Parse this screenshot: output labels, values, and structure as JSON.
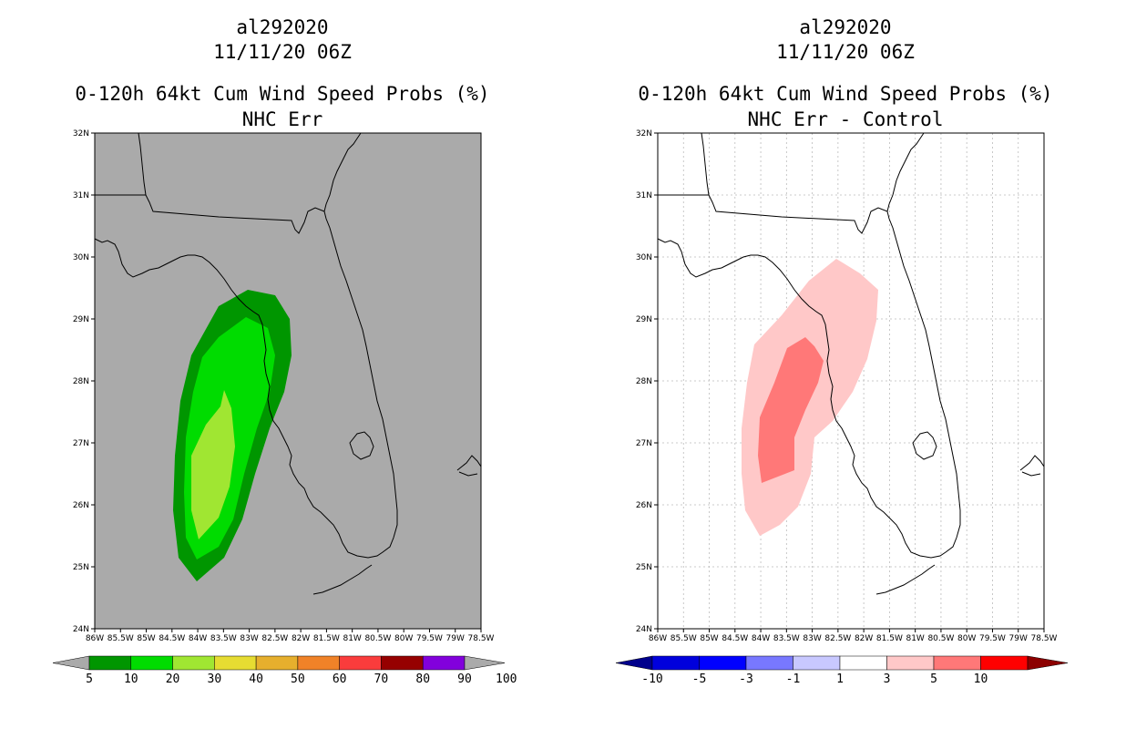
{
  "left": {
    "title1": "al292020",
    "title2": "11/11/20 06Z",
    "title3": "0-120h 64kt Cum Wind Speed Probs (%)",
    "title4": "NHC Err",
    "background": "#aaaaaa",
    "colorbar": {
      "labels": [
        "5",
        "10",
        "20",
        "30",
        "40",
        "50",
        "60",
        "70",
        "80",
        "90",
        "100"
      ],
      "colors": [
        "#009600",
        "#00dc00",
        "#a0e632",
        "#e6dc32",
        "#e6af2d",
        "#f08228",
        "#fa3c3c",
        "#960000",
        "#8200dc"
      ],
      "end_color": "#aaaaaa"
    },
    "contour_values": [
      5,
      10,
      20
    ]
  },
  "right": {
    "title1": "al292020",
    "title2": "11/11/20 06Z",
    "title3": "0-120h 64kt Cum Wind Speed Probs (%)",
    "title4": "NHC Err - Control",
    "background": "#ffffff",
    "colorbar": {
      "labels": [
        "-10",
        "-5",
        "-3",
        "-1",
        "1",
        "3",
        "5",
        "10"
      ],
      "colors": [
        "#0000dc",
        "#0000ff",
        "#7878ff",
        "#c8c8ff",
        "#ffffff",
        "#ffc8c8",
        "#ff7878",
        "#ff0000"
      ],
      "end_left": "#00008c",
      "end_right": "#8c0000"
    },
    "contour_values": [
      1,
      3
    ]
  },
  "map": {
    "lat_labels": [
      "24N",
      "25N",
      "26N",
      "27N",
      "28N",
      "29N",
      "30N",
      "31N",
      "32N"
    ],
    "lon_labels": [
      "86W",
      "85.5W",
      "85W",
      "84.5W",
      "84W",
      "83.5W",
      "83W",
      "82.5W",
      "82W",
      "81.5W",
      "81W",
      "80.5W",
      "80W",
      "79.5W",
      "79W",
      "78.5W"
    ],
    "lat_range": [
      24,
      32
    ],
    "lon_range": [
      -86,
      -78.5
    ]
  }
}
